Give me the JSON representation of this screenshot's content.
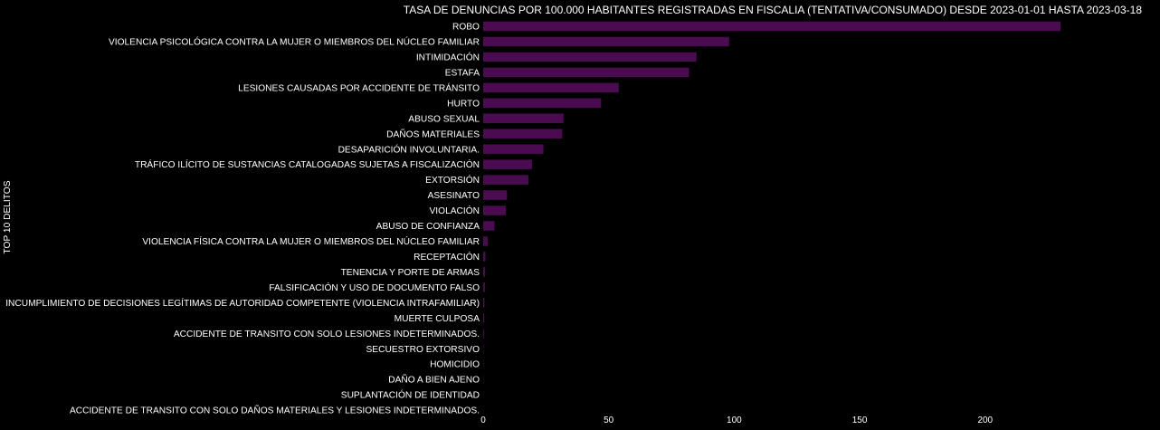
{
  "chart_data": {
    "type": "bar",
    "orientation": "horizontal",
    "title": "TASA DE DENUNCIAS POR 100.000 HABITANTES REGISTRADAS EN FISCALIA (TENTATIVA/CONSUMADO) DESDE 2023-01-01 HASTA 2023-03-18",
    "ylabel": "TOP 10 DELITOS",
    "xlabel": "",
    "xlim": [
      0,
      230
    ],
    "xticks": [
      0,
      50,
      100,
      150,
      200
    ],
    "grid": false,
    "bar_color": "#4b0b50",
    "background_color": "#000000",
    "categories": [
      "ROBO",
      "VIOLENCIA PSICOLÓGICA CONTRA LA MUJER O MIEMBROS DEL NÚCLEO FAMILIAR",
      "INTIMIDACIÓN",
      "ESTAFA",
      "LESIONES CAUSADAS POR ACCIDENTE DE TRÁNSITO",
      "HURTO",
      "ABUSO SEXUAL",
      "DAÑOS MATERIALES",
      "DESAPARICIÓN INVOLUNTARIA.",
      "TRÁFICO ILÍCITO DE SUSTANCIAS CATALOGADAS SUJETAS A FISCALIZACIÓN",
      "EXTORSIÓN",
      "ASESINATO",
      "VIOLACIÓN",
      "ABUSO DE CONFIANZA",
      "VIOLENCIA FÍSICA CONTRA LA MUJER O MIEMBROS DEL NÚCLEO FAMILIAR",
      "RECEPTACIÓN",
      "TENENCIA Y PORTE DE ARMAS",
      "FALSIFICACIÓN Y USO DE DOCUMENTO FALSO",
      "INCUMPLIMIENTO DE DECISIONES LEGÍTIMAS DE AUTORIDAD COMPETENTE (VIOLENCIA INTRAFAMILIAR)",
      "MUERTE CULPOSA",
      "ACCIDENTE DE TRANSITO CON SOLO LESIONES INDETERMINADOS.",
      "SECUESTRO EXTORSIVO",
      "HOMICIDIO",
      "DAÑO A BIEN AJENO",
      "SUPLANTACIÓN DE IDENTIDAD",
      "ACCIDENTE DE TRANSITO CON SOLO DAÑOS MATERIALES Y LESIONES INDETERMINADOS."
    ],
    "values": [
      230,
      98,
      85,
      82,
      54,
      47,
      32,
      31.5,
      24,
      19.5,
      18,
      9.5,
      9,
      4.5,
      1.8,
      0.9,
      0.8,
      0.7,
      0.5,
      0.4,
      0.3,
      0.15,
      0.12,
      0.1,
      0.08,
      0.05
    ]
  }
}
